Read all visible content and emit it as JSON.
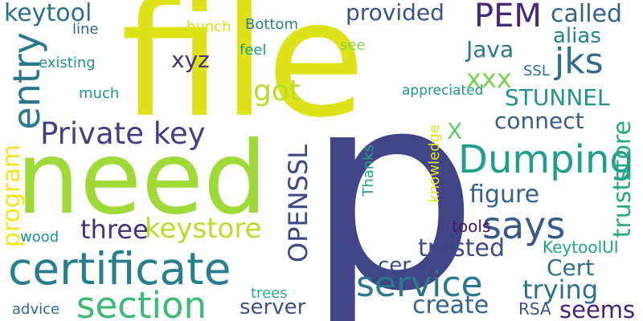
{
  "words": {
    "p": {
      "text": "p",
      "color": "#414487"
    },
    "file": {
      "text": "file",
      "color": "#dde318"
    },
    "need": {
      "text": "need",
      "color": "#a0da39"
    },
    "certificate": {
      "text": "certificate",
      "color": "#277f8e"
    },
    "section": {
      "text": "section",
      "color": "#3bbb75"
    },
    "service": {
      "text": "service",
      "color": "#2a788e"
    },
    "dumping": {
      "text": "Dumping",
      "color": "#1f9e89"
    },
    "private_key": {
      "text": "Private key",
      "color": "#433e85"
    },
    "entry": {
      "text": "entry",
      "color": "#2a788e"
    },
    "says": {
      "text": "says",
      "color": "#375a8c"
    },
    "jks": {
      "text": "jks",
      "color": "#2f6c8e"
    },
    "pem": {
      "text": "PEM",
      "color": "#482777"
    },
    "keytool": {
      "text": "keytool",
      "color": "#2d708e"
    },
    "provided": {
      "text": "provided",
      "color": "#3a538b"
    },
    "called": {
      "text": "called",
      "color": "#33638d"
    },
    "alias": {
      "text": "alias",
      "color": "#26838f"
    },
    "java": {
      "text": "Java",
      "color": "#2a788e"
    },
    "xyz": {
      "text": "xyz",
      "color": "#46307e"
    },
    "xxx": {
      "text": "xxx",
      "color": "#7ad151"
    },
    "got": {
      "text": "got",
      "color": "#b5de2b"
    },
    "stunnel": {
      "text": "STUNNEL",
      "color": "#20938c"
    },
    "connect": {
      "text": "connect",
      "color": "#365d8d"
    },
    "truststore": {
      "text": "truststore",
      "color": "#25ac82"
    },
    "figure": {
      "text": "figure",
      "color": "#35608d"
    },
    "openssl": {
      "text": "OPENSSL",
      "color": "#3f4889"
    },
    "three": {
      "text": "three",
      "color": "#46327e"
    },
    "keystore": {
      "text": "keystore",
      "color": "#bade28"
    },
    "program": {
      "text": "program",
      "color": "#f1e51d"
    },
    "trusted": {
      "text": "trusted",
      "color": "#3e4a89"
    },
    "cert": {
      "text": "Cert",
      "color": "#2e6e8e"
    },
    "trying": {
      "text": "trying",
      "color": "#2c718e"
    },
    "seems": {
      "text": "seems",
      "color": "#482475"
    },
    "create": {
      "text": "create",
      "color": "#33628d"
    },
    "server": {
      "text": "server",
      "color": "#3b528b"
    },
    "cer": {
      "text": "cer",
      "color": "#3e4c8a"
    },
    "x": {
      "text": "X",
      "color": "#5ec962"
    },
    "knowledge": {
      "text": "knowledge",
      "color": "#e2e418"
    },
    "thanks": {
      "text": "Thanks",
      "color": "#1fa287"
    },
    "tools": {
      "text": "tools",
      "color": "#471365"
    },
    "keytoolui": {
      "text": "KeytoolUI",
      "color": "#22a785"
    },
    "rsa": {
      "text": "RSA",
      "color": "#3b528b"
    },
    "wood": {
      "text": "wood",
      "color": "#1f968b"
    },
    "trees": {
      "text": "trees",
      "color": "#2ab07f"
    },
    "advice": {
      "text": "advice",
      "color": "#31688e"
    },
    "line": {
      "text": "line",
      "color": "#31688e"
    },
    "bunch": {
      "text": "bunch",
      "color": "#d2e21b"
    },
    "bottom": {
      "text": "Bottom",
      "color": "#26828e"
    },
    "feel": {
      "text": "feel",
      "color": "#1f9a8a"
    },
    "see": {
      "text": "see",
      "color": "#8bd646"
    },
    "existing": {
      "text": "existing",
      "color": "#20928c"
    },
    "much": {
      "text": "much",
      "color": "#1f948c"
    },
    "ssl": {
      "text": "SSL",
      "color": "#2c728e"
    },
    "appreciated": {
      "text": "appreciated",
      "color": "#1f9a8a"
    }
  }
}
